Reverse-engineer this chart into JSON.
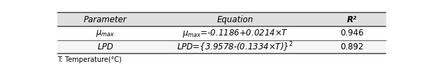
{
  "header": [
    "Parameter",
    "Equation",
    "R²"
  ],
  "rows": [
    {
      "param_math": "$\\mu_{max}$",
      "eq_math": "$\\mu_{max}$=-0.1186+0.0214×T",
      "r2": "0.946"
    },
    {
      "param_math": "$LPD$",
      "eq_math": "$LPD$={3.9578-(0.1334×T)}$^2$",
      "r2": "0.892"
    }
  ],
  "footnote": "T: Temperature(°C)",
  "header_bg": "#e0e0e0",
  "row1_bg": "#ffffff",
  "row2_bg": "#f5f5f5",
  "border_color": "#555555",
  "figsize": [
    6.2,
    1.05
  ],
  "dpi": 100,
  "fs": 8.5,
  "fs_footnote": 7.0
}
